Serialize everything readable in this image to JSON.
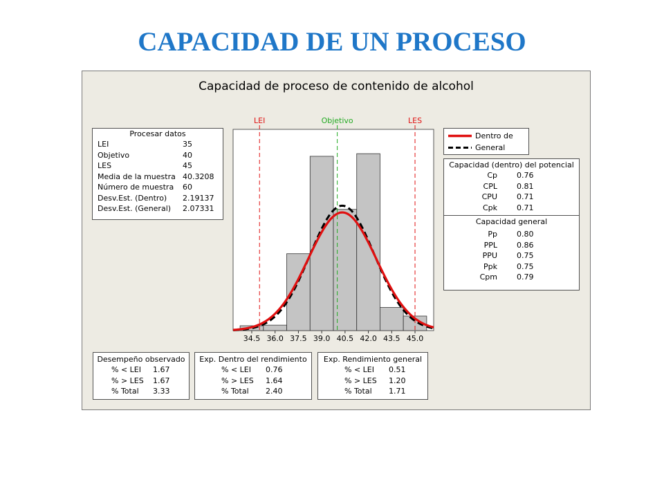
{
  "slide_title": "CAPACIDAD DE UN PROCESO",
  "colors": {
    "title_blue": "#1f77c8",
    "within_curve": "#e01010",
    "overall_curve": "#000000",
    "spec_line": "#e01010",
    "target_line": "#22aa22",
    "bars": "#c4c4c4",
    "panel_bg": "#edebe3"
  },
  "chart_data": {
    "type": "bar",
    "title": "Capacidad de proceso de contenido de alcohol",
    "bin_edges": [
      33.75,
      35.25,
      36.75,
      38.25,
      39.75,
      41.25,
      42.75,
      44.25,
      45.75
    ],
    "values": [
      0.0075,
      0.0084,
      0.1185,
      0.2685,
      0.1867,
      0.2725,
      0.0356,
      0.0224
    ],
    "xticks": [
      "34.5",
      "36.0",
      "37.5",
      "39.0",
      "40.5",
      "42.0",
      "43.5",
      "45.0"
    ],
    "xlim": [
      33.3,
      46.2
    ],
    "ylim": [
      0,
      0.31
    ],
    "markers": [
      {
        "label": "LEI",
        "x": 35,
        "color": "#e01010"
      },
      {
        "label": "Objetivo",
        "x": 40,
        "color": "#22aa22"
      },
      {
        "label": "LES",
        "x": 45,
        "color": "#e01010"
      }
    ],
    "curves": [
      {
        "name": "Dentro de",
        "mean": 40.3208,
        "sd": 2.19137,
        "color": "#e01010",
        "style": "solid"
      },
      {
        "name": "General",
        "mean": 40.3208,
        "sd": 2.07331,
        "color": "#000000",
        "style": "dashed"
      }
    ]
  },
  "process_data": {
    "title": "Procesar datos",
    "rows": [
      {
        "label": "LEI",
        "value": "35"
      },
      {
        "label": "Objetivo",
        "value": "40"
      },
      {
        "label": "LES",
        "value": "45"
      },
      {
        "label": "Media de la muestra",
        "value": "40.3208"
      },
      {
        "label": "Número de muestra",
        "value": "60"
      },
      {
        "label": "Desv.Est. (Dentro)",
        "value": "2.19137"
      },
      {
        "label": "Desv.Est. (General)",
        "value": "2.07331"
      }
    ]
  },
  "legend": {
    "within": "Dentro de",
    "overall": "General"
  },
  "potential": {
    "title": "Capacidad (dentro) del potencial",
    "rows": [
      {
        "label": "Cp",
        "value": "0.76"
      },
      {
        "label": "CPL",
        "value": "0.81"
      },
      {
        "label": "CPU",
        "value": "0.71"
      },
      {
        "label": "Cpk",
        "value": "0.71"
      }
    ]
  },
  "overall": {
    "title": "Capacidad general",
    "rows": [
      {
        "label": "Pp",
        "value": "0.80"
      },
      {
        "label": "PPL",
        "value": "0.86"
      },
      {
        "label": "PPU",
        "value": "0.75"
      },
      {
        "label": "Ppk",
        "value": "0.75"
      },
      {
        "label": "Cpm",
        "value": "0.79"
      }
    ]
  },
  "observed": {
    "title": "Desempeño observado",
    "rows": [
      {
        "label": "% < LEI",
        "value": "1.67"
      },
      {
        "label": "% > LES",
        "value": "1.67"
      },
      {
        "label": "% Total",
        "value": "3.33"
      }
    ]
  },
  "exp_within": {
    "title": "Exp. Dentro del rendimiento",
    "rows": [
      {
        "label": "% < LEI",
        "value": "0.76"
      },
      {
        "label": "% > LES",
        "value": "1.64"
      },
      {
        "label": "% Total",
        "value": "2.40"
      }
    ]
  },
  "exp_overall": {
    "title": "Exp. Rendimiento general",
    "rows": [
      {
        "label": "% < LEI",
        "value": "0.51"
      },
      {
        "label": "% > LES",
        "value": "1.20"
      },
      {
        "label": "% Total",
        "value": "1.71"
      }
    ]
  }
}
